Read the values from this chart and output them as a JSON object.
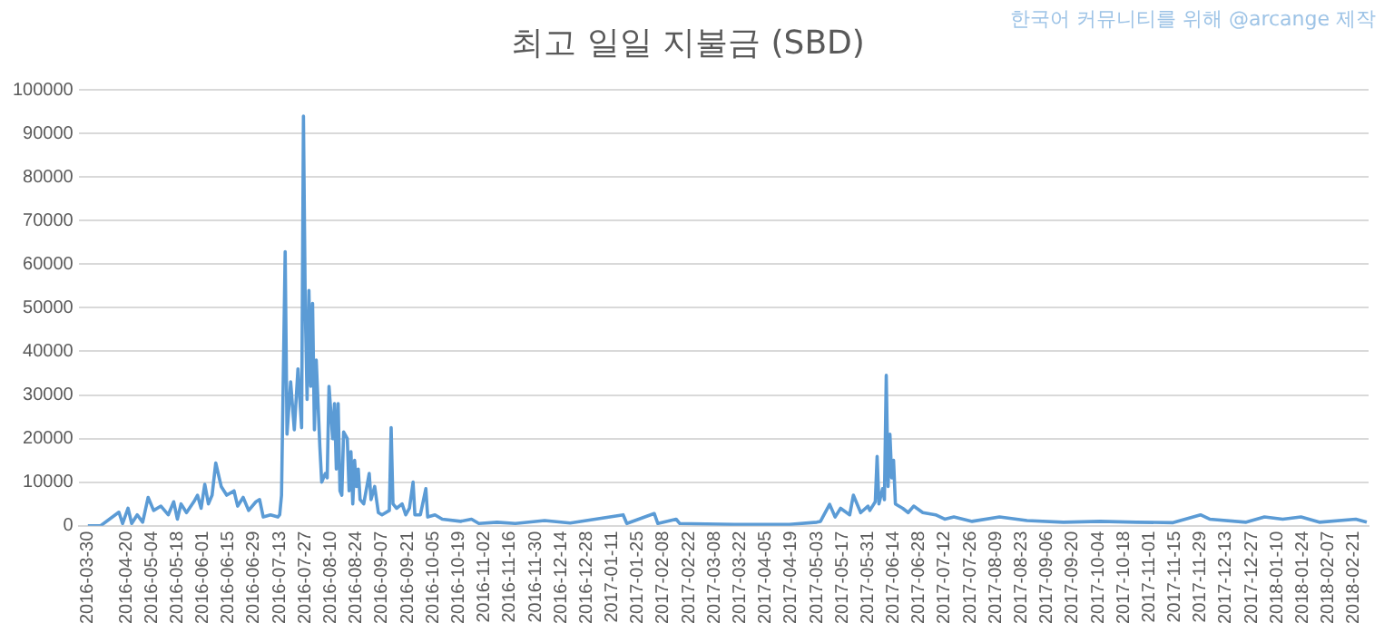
{
  "chart_data": {
    "type": "line",
    "title": "최고 일일 지불금 (SBD)",
    "annotations": [
      "한국어 커뮤니티를 위해 @arcange 제작"
    ],
    "x": [
      "2016-03-30",
      "2016-04-06",
      "2016-04-16",
      "2016-04-18",
      "2016-04-21",
      "2016-04-23",
      "2016-04-26",
      "2016-04-29",
      "2016-05-02",
      "2016-05-05",
      "2016-05-09",
      "2016-05-13",
      "2016-05-16",
      "2016-05-18",
      "2016-05-20",
      "2016-05-23",
      "2016-05-27",
      "2016-05-29",
      "2016-05-31",
      "2016-06-02",
      "2016-06-04",
      "2016-06-06",
      "2016-06-08",
      "2016-06-11",
      "2016-06-14",
      "2016-06-18",
      "2016-06-20",
      "2016-06-23",
      "2016-06-26",
      "2016-06-30",
      "2016-07-02",
      "2016-07-04",
      "2016-07-08",
      "2016-07-12",
      "2016-07-13",
      "2016-07-14",
      "2016-07-16",
      "2016-07-17",
      "2016-07-19",
      "2016-07-21",
      "2016-07-23",
      "2016-07-25",
      "2016-07-26",
      "2016-07-27",
      "2016-07-28",
      "2016-07-29",
      "2016-07-30",
      "2016-07-31",
      "2016-08-01",
      "2016-08-02",
      "2016-08-03",
      "2016-08-04",
      "2016-08-05",
      "2016-08-07",
      "2016-08-08",
      "2016-08-09",
      "2016-08-11",
      "2016-08-12",
      "2016-08-13",
      "2016-08-14",
      "2016-08-15",
      "2016-08-16",
      "2016-08-17",
      "2016-08-19",
      "2016-08-20",
      "2016-08-21",
      "2016-08-22",
      "2016-08-23",
      "2016-08-24",
      "2016-08-25",
      "2016-08-26",
      "2016-08-28",
      "2016-08-31",
      "2016-09-01",
      "2016-09-03",
      "2016-09-05",
      "2016-09-07",
      "2016-09-11",
      "2016-09-12",
      "2016-09-13",
      "2016-09-15",
      "2016-09-18",
      "2016-09-20",
      "2016-09-22",
      "2016-09-24",
      "2016-09-25",
      "2016-09-28",
      "2016-10-01",
      "2016-10-02",
      "2016-10-06",
      "2016-10-10",
      "2016-10-20",
      "2016-10-26",
      "2016-10-30",
      "2016-11-09",
      "2016-11-19",
      "2016-12-05",
      "2016-12-19",
      "2017-01-17",
      "2017-01-19",
      "2017-02-03",
      "2017-02-05",
      "2017-02-15",
      "2017-02-17",
      "2017-03-19",
      "2017-04-18",
      "2017-05-03",
      "2017-05-05",
      "2017-05-10",
      "2017-05-13",
      "2017-05-16",
      "2017-05-21",
      "2017-05-23",
      "2017-05-27",
      "2017-05-31",
      "2017-06-01",
      "2017-06-04",
      "2017-06-05",
      "2017-06-06",
      "2017-06-08",
      "2017-06-09",
      "2017-06-10",
      "2017-06-11",
      "2017-06-12",
      "2017-06-13",
      "2017-06-14",
      "2017-06-15",
      "2017-06-19",
      "2017-06-22",
      "2017-06-25",
      "2017-06-30",
      "2017-07-07",
      "2017-07-12",
      "2017-07-17",
      "2017-07-27",
      "2017-08-11",
      "2017-08-26",
      "2017-09-15",
      "2017-10-05",
      "2017-10-25",
      "2017-11-14",
      "2017-11-29",
      "2017-12-04",
      "2017-12-24",
      "2018-01-03",
      "2018-01-13",
      "2018-01-23",
      "2018-02-02",
      "2018-02-22",
      "2018-02-28"
    ],
    "series": [
      {
        "color": "#5b9bd5",
        "values": [
          0,
          0,
          3100,
          500,
          4000,
          500,
          2500,
          800,
          6500,
          3500,
          4500,
          2500,
          5500,
          1500,
          5000,
          3000,
          5500,
          7000,
          4000,
          9500,
          5000,
          7000,
          14400,
          9000,
          7000,
          8000,
          4500,
          6500,
          3500,
          5500,
          6000,
          2000,
          2500,
          2000,
          2500,
          7000,
          62900,
          21000,
          33000,
          22000,
          36000,
          22500,
          94000,
          50000,
          29000,
          54000,
          32000,
          51000,
          22000,
          38000,
          28000,
          18000,
          10000,
          12000,
          11000,
          32000,
          20000,
          28000,
          13000,
          28000,
          8000,
          7000,
          21500,
          20000,
          8000,
          17000,
          5000,
          15000,
          9000,
          13000,
          6000,
          5000,
          12000,
          6000,
          9000,
          3000,
          2500,
          3500,
          22500,
          5000,
          4000,
          5000,
          2500,
          4000,
          10000,
          2500,
          2500,
          8500,
          2000,
          2500,
          1500,
          1000,
          1500,
          500,
          800,
          500,
          1200,
          600,
          2500,
          500,
          2800,
          500,
          1500,
          500,
          300,
          300,
          800,
          1000,
          4900,
          2000,
          4000,
          2500,
          7000,
          3000,
          4500,
          3500,
          5500,
          15900,
          5000,
          8500,
          6000,
          34500,
          9000,
          21000,
          11000,
          15000,
          5000,
          4000,
          3000,
          4500,
          3000,
          2500,
          1500,
          2000,
          1000,
          2000,
          1200,
          800,
          1000,
          800,
          700,
          2500,
          1500,
          800,
          2000,
          1500,
          2000,
          800,
          1500,
          800
        ]
      }
    ],
    "xlim": [
      "2016-03-25",
      "2018-03-01"
    ],
    "xticks": [
      "2016-03-30",
      "2016-04-20",
      "2016-05-04",
      "2016-05-18",
      "2016-06-01",
      "2016-06-15",
      "2016-06-29",
      "2016-07-13",
      "2016-07-27",
      "2016-08-10",
      "2016-08-24",
      "2016-09-07",
      "2016-09-21",
      "2016-10-05",
      "2016-10-19",
      "2016-11-02",
      "2016-11-16",
      "2016-11-30",
      "2016-12-14",
      "2016-12-28",
      "2017-01-11",
      "2017-01-25",
      "2017-02-08",
      "2017-02-22",
      "2017-03-08",
      "2017-03-22",
      "2017-04-05",
      "2017-04-19",
      "2017-05-03",
      "2017-05-17",
      "2017-05-31",
      "2017-06-14",
      "2017-06-28",
      "2017-07-12",
      "2017-07-26",
      "2017-08-09",
      "2017-08-23",
      "2017-09-06",
      "2017-09-20",
      "2017-10-04",
      "2017-10-18",
      "2017-11-01",
      "2017-11-15",
      "2017-11-29",
      "2017-12-13",
      "2017-12-27",
      "2018-01-10",
      "2018-01-24",
      "2018-02-07",
      "2018-02-21"
    ],
    "ylim": [
      0,
      100000
    ],
    "yticks": [
      0,
      10000,
      20000,
      30000,
      40000,
      50000,
      60000,
      70000,
      80000,
      90000,
      100000
    ],
    "grid": "y",
    "legend": false,
    "marker": "none",
    "line_style": "solid"
  }
}
